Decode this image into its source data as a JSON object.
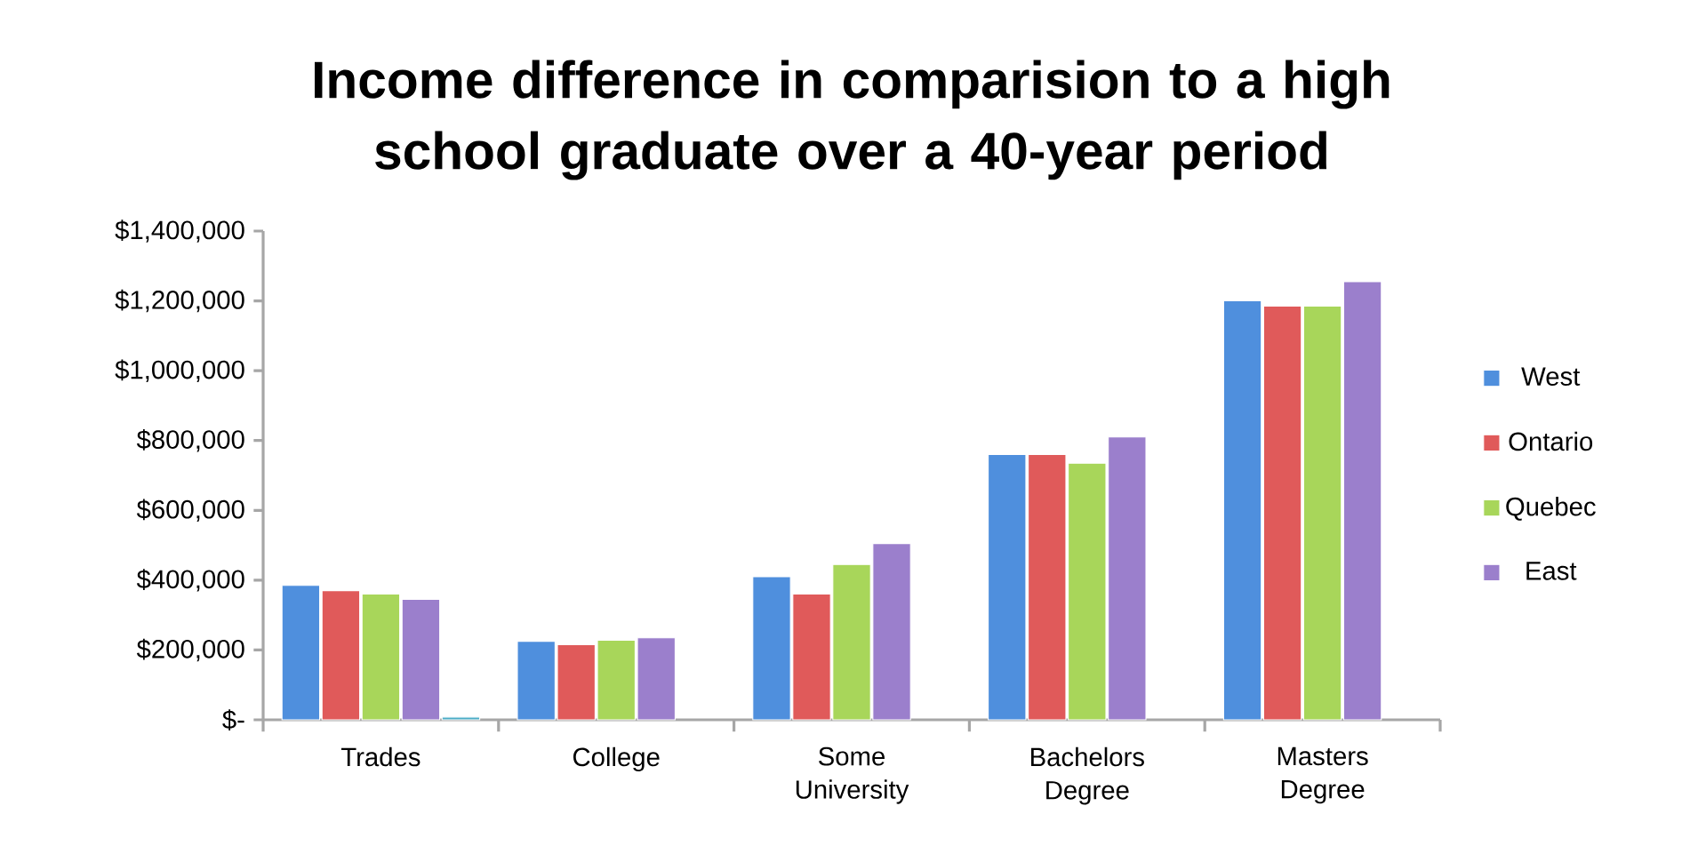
{
  "chart_data": {
    "type": "bar",
    "title": "Income difference in comparision to a high school graduate over a 40-year period",
    "categories": [
      "Trades",
      "College",
      "Some University",
      "Bachelors Degree",
      "Masters Degree"
    ],
    "series": [
      {
        "name": "West",
        "color": "#4f8fdd",
        "values": [
          385000,
          225000,
          410000,
          760000,
          1200000
        ]
      },
      {
        "name": "Ontario",
        "color": "#e05a5a",
        "values": [
          370000,
          215000,
          360000,
          760000,
          1185000
        ]
      },
      {
        "name": "Quebec",
        "color": "#a8d65a",
        "values": [
          360000,
          228000,
          445000,
          735000,
          1185000
        ]
      },
      {
        "name": "East",
        "color": "#9b7fcc",
        "values": [
          345000,
          235000,
          505000,
          810000,
          1255000
        ]
      },
      {
        "color": "#4bacc6",
        "values": [
          8000,
          null,
          null,
          null,
          null
        ]
      }
    ],
    "ylim": [
      0,
      1400000
    ],
    "yticks": [
      {
        "value": 0,
        "label": "$-"
      },
      {
        "value": 200000,
        "label": "$200,000"
      },
      {
        "value": 400000,
        "label": "$400,000"
      },
      {
        "value": 600000,
        "label": "$600,000"
      },
      {
        "value": 800000,
        "label": "$800,000"
      },
      {
        "value": 1000000,
        "label": "$1,000,000"
      },
      {
        "value": 1200000,
        "label": "$1,200,000"
      },
      {
        "value": 1400000,
        "label": "$1,400,000"
      }
    ],
    "grid": false,
    "legend": "right"
  }
}
